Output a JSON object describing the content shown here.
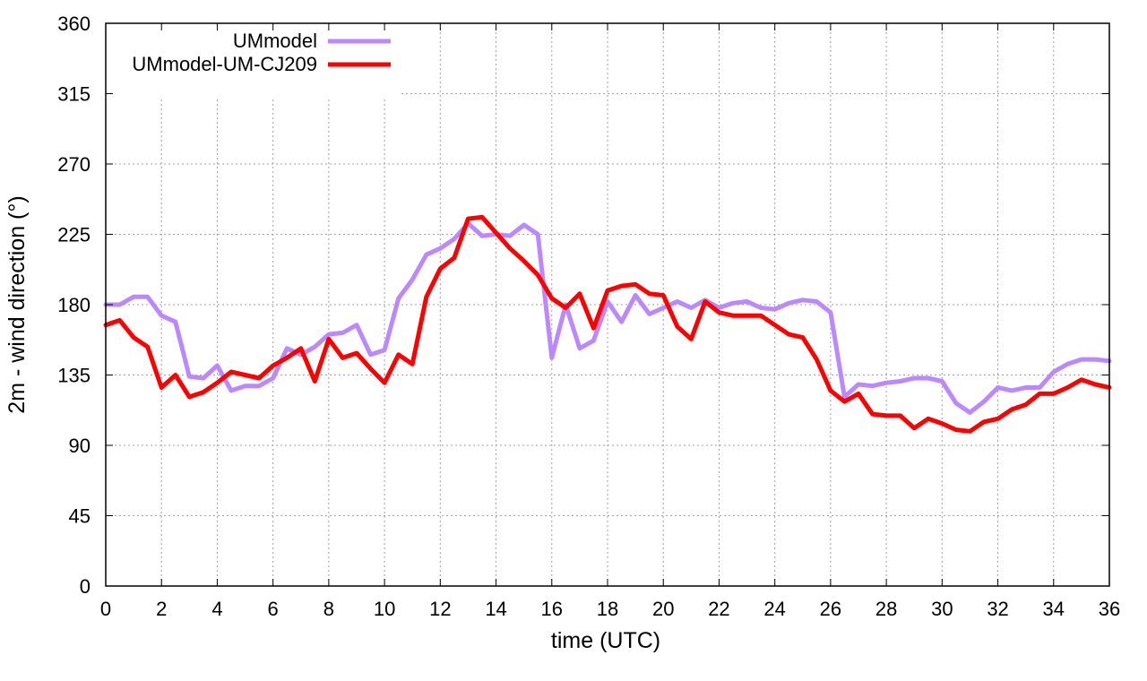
{
  "chart_data": {
    "type": "line",
    "xlabel": "time (UTC)",
    "ylabel": "2m - wind direction (°)",
    "xlim": [
      0,
      36
    ],
    "ylim": [
      0,
      360
    ],
    "xticks": [
      0,
      2,
      4,
      6,
      8,
      10,
      12,
      14,
      16,
      18,
      20,
      22,
      24,
      26,
      28,
      30,
      32,
      34,
      36
    ],
    "yticks": [
      0,
      45,
      90,
      135,
      180,
      225,
      270,
      315,
      360
    ],
    "grid": true,
    "legend_position": "top-left",
    "series": [
      {
        "name": "UMmodel",
        "color": "#bb88ff",
        "x": [
          0,
          0.5,
          1,
          1.5,
          2,
          2.5,
          3,
          3.5,
          4,
          4.5,
          5,
          5.5,
          6,
          6.5,
          7,
          7.5,
          8,
          8.5,
          9,
          9.5,
          10,
          10.5,
          11,
          11.5,
          12,
          12.5,
          13,
          13.5,
          14,
          14.5,
          15,
          15.5,
          16,
          16.5,
          17,
          17.5,
          18,
          18.5,
          19,
          19.5,
          20,
          20.5,
          21,
          21.5,
          22,
          22.5,
          23,
          23.5,
          24,
          24.5,
          25,
          25.5,
          26,
          26.5,
          27,
          27.5,
          28,
          28.5,
          29,
          29.5,
          30,
          30.5,
          31,
          31.5,
          32,
          32.5,
          33,
          33.5,
          34,
          34.5,
          35,
          35.5,
          36
        ],
        "y": [
          180,
          180,
          185,
          185,
          173,
          169,
          134,
          133,
          141,
          125,
          128,
          128,
          133,
          152,
          148,
          153,
          161,
          162,
          167,
          148,
          151,
          184,
          196,
          212,
          216,
          222,
          232,
          224,
          225,
          224,
          231,
          225,
          146,
          180,
          152,
          157,
          182,
          169,
          186,
          174,
          178,
          182,
          178,
          183,
          178,
          181,
          182,
          178,
          177,
          181,
          183,
          182,
          175,
          121,
          129,
          128,
          130,
          131,
          133,
          133,
          131,
          117,
          111,
          118,
          127,
          125,
          127,
          127,
          137,
          142,
          145,
          145,
          144
        ]
      },
      {
        "name": "UMmodel-UM-CJ209",
        "color": "#ff0000",
        "x": [
          0,
          0.5,
          1,
          1.5,
          2,
          2.5,
          3,
          3.5,
          4,
          4.5,
          5,
          5.5,
          6,
          6.5,
          7,
          7.5,
          8,
          8.5,
          9,
          9.5,
          10,
          10.5,
          11,
          11.5,
          12,
          12.5,
          13,
          13.5,
          14,
          14.5,
          15,
          15.5,
          16,
          16.5,
          17,
          17.5,
          18,
          18.5,
          19,
          19.5,
          20,
          20.5,
          21,
          21.5,
          22,
          22.5,
          23,
          23.5,
          24,
          24.5,
          25,
          25.5,
          26,
          26.5,
          27,
          27.5,
          28,
          28.5,
          29,
          29.5,
          30,
          30.5,
          31,
          31.5,
          32,
          32.5,
          33,
          33.5,
          34,
          34.5,
          35,
          35.5,
          36
        ],
        "y": [
          167,
          170,
          159,
          153,
          127,
          135,
          121,
          124,
          130,
          137,
          135,
          133,
          141,
          146,
          152,
          131,
          158,
          146,
          149,
          139,
          130,
          148,
          142,
          185,
          203,
          210,
          235,
          236,
          226,
          216,
          208,
          199,
          184,
          178,
          187,
          165,
          189,
          192,
          193,
          187,
          186,
          166,
          158,
          182,
          175,
          173,
          173,
          173,
          167,
          161,
          159,
          145,
          125,
          118,
          123,
          110,
          109,
          109,
          101,
          107,
          104,
          100,
          99,
          105,
          107,
          113,
          116,
          123,
          123,
          127,
          132,
          129,
          127
        ]
      }
    ]
  }
}
